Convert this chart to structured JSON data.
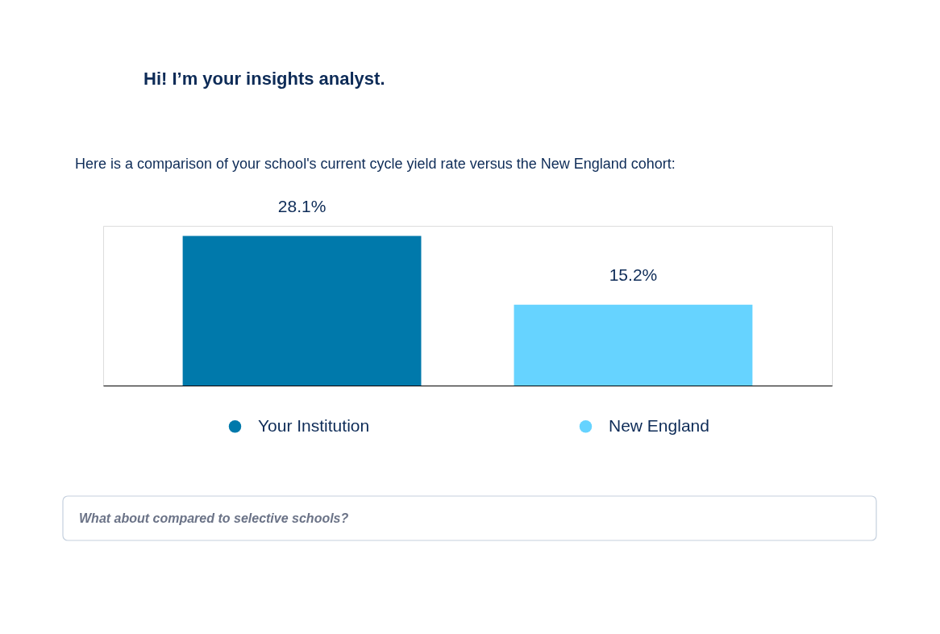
{
  "chart_data": {
    "type": "bar",
    "title": "Hi! I’m your insights analyst.",
    "subtitle": "Here is a comparison of your school's current cycle yield rate versus the New England cohort:",
    "categories": [
      null
    ],
    "series": [
      {
        "name": "Your Institution",
        "color": "#0079ab",
        "values": [
          28.1
        ],
        "value_labels": [
          "28.1%"
        ]
      },
      {
        "name": "New England",
        "color": "#66d3ff",
        "values": [
          15.2
        ],
        "value_labels": [
          "15.2%"
        ]
      }
    ],
    "legend": "bottom",
    "tick_labels": false,
    "annotations": [
      "What about compared to selective schools?"
    ]
  }
}
